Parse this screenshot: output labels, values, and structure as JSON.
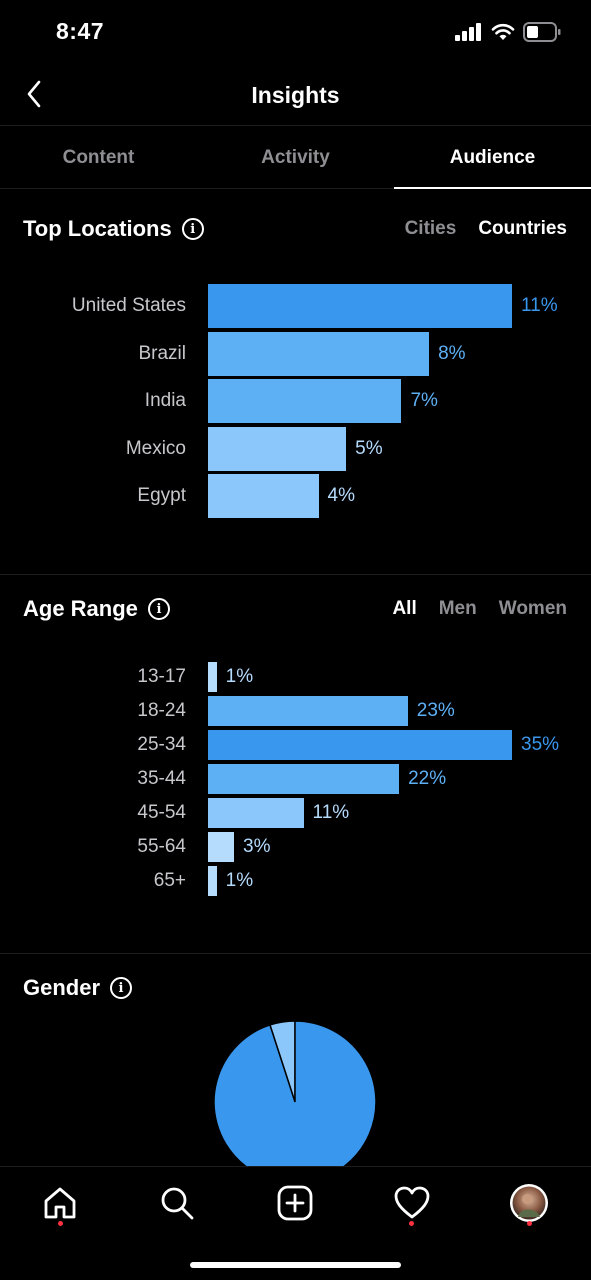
{
  "status_bar": {
    "time": "8:47"
  },
  "header": {
    "title": "Insights"
  },
  "tabs": [
    {
      "label": "Content",
      "active": false
    },
    {
      "label": "Activity",
      "active": false
    },
    {
      "label": "Audience",
      "active": true
    }
  ],
  "top_locations": {
    "title": "Top Locations",
    "filters": [
      {
        "label": "Cities",
        "active": false
      },
      {
        "label": "Countries",
        "active": true
      }
    ]
  },
  "age_range": {
    "title": "Age Range",
    "filters": [
      {
        "label": "All",
        "active": true
      },
      {
        "label": "Men",
        "active": false
      },
      {
        "label": "Women",
        "active": false
      }
    ]
  },
  "gender": {
    "title": "Gender"
  },
  "colors": {
    "accent": "#3a97ee",
    "mid": "#5eb0f5",
    "light": "#8cc7fb",
    "lighter": "#b5dbfd",
    "muted": "#8e8e93"
  },
  "chart_data": [
    {
      "type": "bar",
      "orientation": "horizontal",
      "categories": [
        "United States",
        "Brazil",
        "India",
        "Mexico",
        "Egypt"
      ],
      "values": [
        11,
        8,
        7,
        5,
        4
      ],
      "value_labels": [
        "11%",
        "8%",
        "7%",
        "5%",
        "4%"
      ]
    },
    {
      "type": "bar",
      "orientation": "horizontal",
      "categories": [
        "13-17",
        "18-24",
        "25-34",
        "35-44",
        "45-54",
        "55-64",
        "65+"
      ],
      "values": [
        1,
        23,
        35,
        22,
        11,
        3,
        1
      ],
      "value_labels": [
        "1%",
        "23%",
        "35%",
        "22%",
        "11%",
        "3%",
        "1%"
      ]
    },
    {
      "type": "pie",
      "values": [
        95,
        5
      ]
    }
  ]
}
